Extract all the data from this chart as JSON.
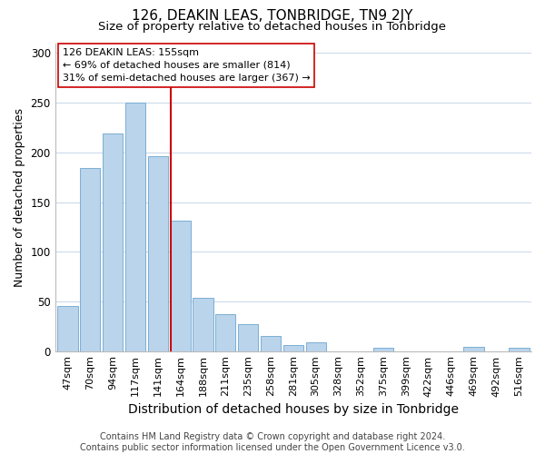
{
  "title": "126, DEAKIN LEAS, TONBRIDGE, TN9 2JY",
  "subtitle": "Size of property relative to detached houses in Tonbridge",
  "xlabel": "Distribution of detached houses by size in Tonbridge",
  "ylabel": "Number of detached properties",
  "bar_labels": [
    "47sqm",
    "70sqm",
    "94sqm",
    "117sqm",
    "141sqm",
    "164sqm",
    "188sqm",
    "211sqm",
    "235sqm",
    "258sqm",
    "281sqm",
    "305sqm",
    "328sqm",
    "352sqm",
    "375sqm",
    "399sqm",
    "422sqm",
    "446sqm",
    "469sqm",
    "492sqm",
    "516sqm"
  ],
  "bar_values": [
    45,
    184,
    219,
    250,
    196,
    131,
    54,
    37,
    27,
    15,
    6,
    9,
    0,
    0,
    3,
    0,
    0,
    0,
    4,
    0,
    3
  ],
  "bar_color": "#bad4eb",
  "bar_edge_color": "#7aafd4",
  "vline_color": "#cc0000",
  "vline_x": 4.575,
  "annotation_text": "126 DEAKIN LEAS: 155sqm\n← 69% of detached houses are smaller (814)\n31% of semi-detached houses are larger (367) →",
  "annotation_box_color": "#ffffff",
  "annotation_box_edge": "#cc0000",
  "ylim": [
    0,
    310
  ],
  "yticks": [
    0,
    50,
    100,
    150,
    200,
    250,
    300
  ],
  "footer_text": "Contains HM Land Registry data © Crown copyright and database right 2024.\nContains public sector information licensed under the Open Government Licence v3.0.",
  "bg_color": "#ffffff",
  "grid_color": "#ccdaeb",
  "title_fontsize": 11,
  "subtitle_fontsize": 9.5,
  "xlabel_fontsize": 10,
  "ylabel_fontsize": 9,
  "tick_fontsize": 8,
  "annotation_fontsize": 8,
  "footer_fontsize": 7
}
